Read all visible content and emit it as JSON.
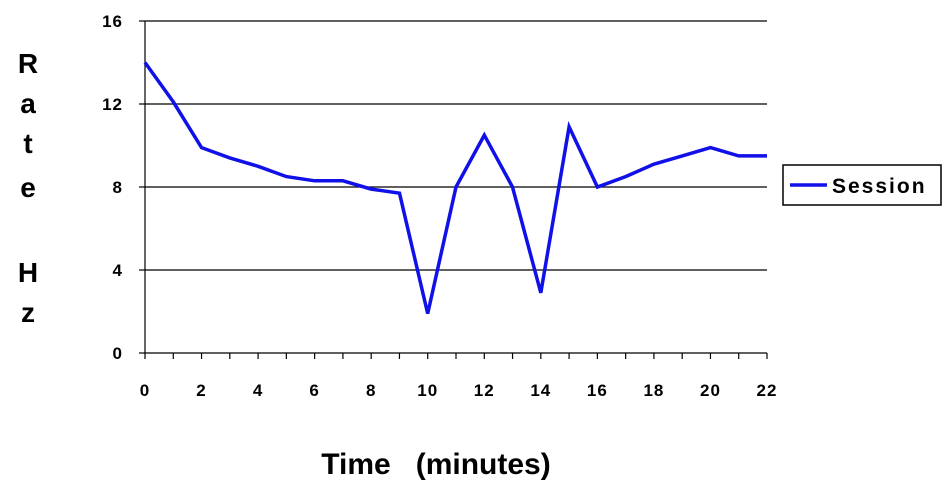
{
  "chart_data": {
    "type": "line",
    "ylabel_letters": [
      "R",
      "a",
      "t",
      "e",
      "",
      "H",
      "z"
    ],
    "xlabel": "Time   (minutes)",
    "xlim": [
      0,
      22
    ],
    "ylim": [
      0,
      16
    ],
    "x_ticks": [
      0,
      2,
      4,
      6,
      8,
      10,
      12,
      14,
      16,
      18,
      20,
      22
    ],
    "y_ticks": [
      0,
      4,
      8,
      12,
      16
    ],
    "grid": "horizontal",
    "legend_position": "right",
    "series": [
      {
        "name": "Session",
        "color": "#1010e8",
        "x": [
          0,
          1,
          2,
          3,
          4,
          5,
          6,
          7,
          8,
          9,
          10,
          11,
          12,
          13,
          14,
          15,
          16,
          17,
          18,
          19,
          20,
          21,
          22
        ],
        "y": [
          14,
          12.1,
          9.9,
          9.4,
          9.0,
          8.5,
          8.3,
          8.3,
          7.9,
          7.7,
          1.9,
          8.0,
          10.5,
          8.0,
          2.9,
          10.9,
          8.0,
          8.5,
          9.1,
          9.5,
          9.9,
          9.5,
          9.5
        ]
      }
    ]
  }
}
